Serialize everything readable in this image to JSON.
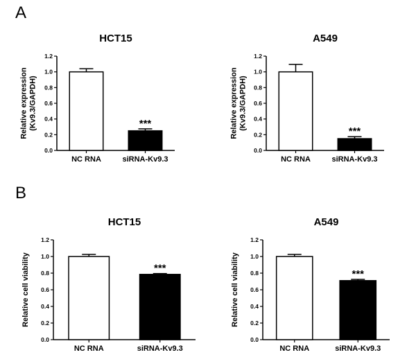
{
  "panels": [
    {
      "label": "A"
    },
    {
      "label": "B"
    }
  ],
  "chart_data": [
    {
      "type": "bar",
      "panel": "A",
      "title": "HCT15",
      "ylabel": "Relative expression\n(Kv9.3/GAPDH)",
      "categories": [
        "NC RNA",
        "siRNA-Kv9.3"
      ],
      "values": [
        1.0,
        0.25
      ],
      "errors": [
        0.04,
        0.025
      ],
      "fills": [
        "#ffffff",
        "#000000"
      ],
      "annotations": [
        "",
        "***"
      ],
      "ylim": [
        0,
        1.2
      ],
      "yticks": [
        "0.0",
        "0.2",
        "0.4",
        "0.6",
        "0.8",
        "1.0",
        "1.2"
      ]
    },
    {
      "type": "bar",
      "panel": "A",
      "title": "A549",
      "ylabel": "Relative expression\n(Kv9.3/GAPDH)",
      "categories": [
        "NC RNA",
        "siRNA-Kv9.3"
      ],
      "values": [
        1.0,
        0.15
      ],
      "errors": [
        0.095,
        0.025
      ],
      "fills": [
        "#ffffff",
        "#000000"
      ],
      "annotations": [
        "",
        "***"
      ],
      "ylim": [
        0,
        1.2
      ],
      "yticks": [
        "0.0",
        "0.2",
        "0.4",
        "0.6",
        "0.8",
        "1.0",
        "1.2"
      ]
    },
    {
      "type": "bar",
      "panel": "B",
      "title": "HCT15",
      "ylabel": "Relative cell viability",
      "categories": [
        "NC RNA",
        "siRNA-Kv9.3"
      ],
      "values": [
        1.0,
        0.785
      ],
      "errors": [
        0.025,
        0.01
      ],
      "fills": [
        "#ffffff",
        "#000000"
      ],
      "annotations": [
        "",
        "***"
      ],
      "ylim": [
        0,
        1.2
      ],
      "yticks": [
        "0.0",
        "0.2",
        "0.4",
        "0.6",
        "0.8",
        "1.0",
        "1.2"
      ]
    },
    {
      "type": "bar",
      "panel": "B",
      "title": "A549",
      "ylabel": "Relative cell viability",
      "categories": [
        "NC RNA",
        "siRNA-Kv9.3"
      ],
      "values": [
        1.0,
        0.71
      ],
      "errors": [
        0.025,
        0.015
      ],
      "fills": [
        "#ffffff",
        "#000000"
      ],
      "annotations": [
        "",
        "***"
      ],
      "ylim": [
        0,
        1.2
      ],
      "yticks": [
        "0.0",
        "0.2",
        "0.4",
        "0.6",
        "0.8",
        "1.0",
        "1.2"
      ]
    }
  ]
}
